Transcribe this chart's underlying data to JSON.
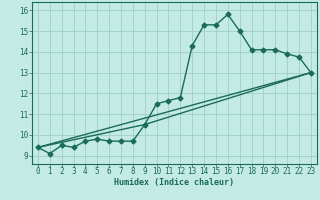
{
  "xlabel": "Humidex (Indice chaleur)",
  "bg_color": "#c4eae6",
  "grid_color": "#9ecfca",
  "line_color": "#1a6b5a",
  "xlim": [
    -0.5,
    23.5
  ],
  "ylim": [
    8.6,
    16.4
  ],
  "xticks": [
    0,
    1,
    2,
    3,
    4,
    5,
    6,
    7,
    8,
    9,
    10,
    11,
    12,
    13,
    14,
    15,
    16,
    17,
    18,
    19,
    20,
    21,
    22,
    23
  ],
  "yticks": [
    9,
    10,
    11,
    12,
    13,
    14,
    15,
    16
  ],
  "line1_x": [
    0,
    1,
    2,
    3,
    4,
    5,
    6,
    7,
    8,
    9,
    10,
    11,
    12,
    13,
    14,
    15,
    16,
    17,
    18,
    19,
    20,
    21,
    22,
    23
  ],
  "line1_y": [
    9.4,
    9.1,
    9.5,
    9.4,
    9.7,
    9.8,
    9.7,
    9.7,
    9.7,
    10.5,
    11.5,
    11.65,
    11.8,
    14.3,
    15.3,
    15.3,
    15.8,
    15.0,
    14.1,
    14.1,
    14.1,
    13.9,
    13.75,
    13.0
  ],
  "line2_x": [
    0,
    23
  ],
  "line2_y": [
    9.4,
    13.0
  ],
  "line3_x": [
    0,
    9,
    23
  ],
  "line3_y": [
    9.4,
    10.5,
    13.0
  ],
  "marker": "D",
  "markersize": 2.5,
  "linewidth": 1.0
}
